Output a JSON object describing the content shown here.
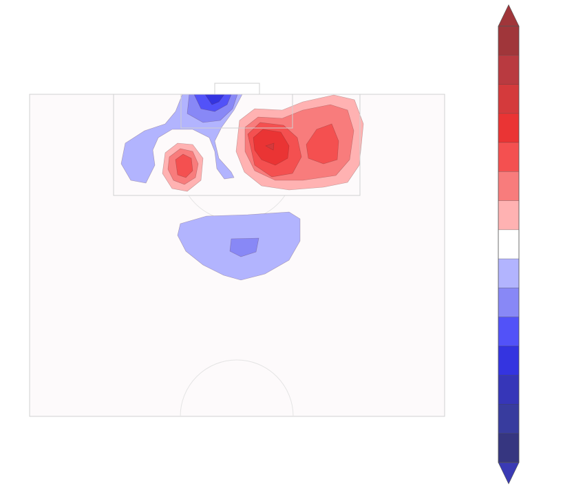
{
  "chart_data": {
    "type": "contour",
    "colorbar_colors": [
      "#a0363a",
      "#a0363a",
      "#b93a40",
      "#d43a3c",
      "#ea3434",
      "#f45050",
      "#f87c7c",
      "#ffb2b2",
      "#ffffff",
      "#b2b4fe",
      "#8888f6",
      "#5252f8",
      "#3434e0",
      "#3636b8",
      "#383c9e",
      "#363680",
      "#3a3ab4"
    ]
  }
}
